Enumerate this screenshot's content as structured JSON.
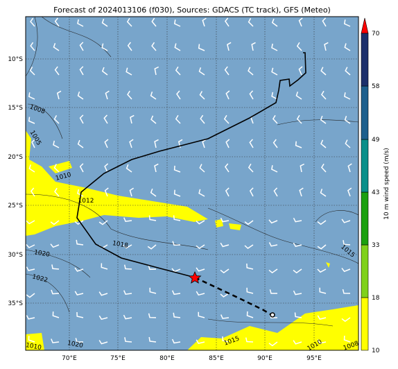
{
  "title": "Forecast of 2024013106 (f030), Sources: GDACS (TC track), GFS (Meteo)",
  "map": {
    "lon_labels": [
      "70°E",
      "75°E",
      "80°E",
      "85°E",
      "90°E",
      "95°E"
    ],
    "lat_labels": [
      "10°S",
      "15°S",
      "20°S",
      "25°S",
      "30°S",
      "35°S"
    ],
    "isobar_labels": [
      "1008",
      "1005",
      "1010",
      "1012",
      "1018",
      "1020",
      "1022",
      "1015",
      "1020",
      "1010",
      "1015",
      "1010",
      "1008"
    ]
  },
  "colorbar": {
    "label": "10 m wind speed (m/s)",
    "ticks": [
      10,
      18,
      33,
      43,
      49,
      58,
      70
    ]
  }
}
